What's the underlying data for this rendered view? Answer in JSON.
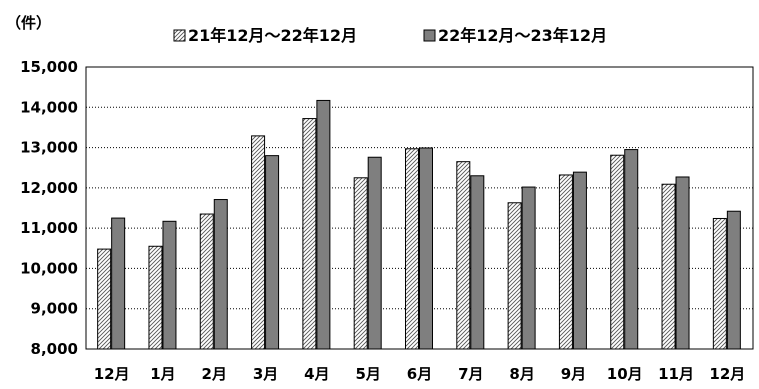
{
  "chart_data": {
    "type": "bar",
    "unit_label": "（件）",
    "categories": [
      "12月",
      "1月",
      "2月",
      "3月",
      "4月",
      "5月",
      "6月",
      "7月",
      "8月",
      "9月",
      "10月",
      "11月",
      "12月"
    ],
    "series": [
      {
        "name": "21年12月～22年12月",
        "values": [
          10480,
          10550,
          11350,
          13290,
          13720,
          12250,
          12970,
          12650,
          11630,
          12320,
          12810,
          12090,
          11240
        ],
        "color": "#ffffff",
        "pattern": "diagonal-hatch"
      },
      {
        "name": "22年12月～23年12月",
        "values": [
          11250,
          11170,
          11710,
          12800,
          14170,
          12760,
          12990,
          12300,
          12020,
          12390,
          12950,
          12270,
          11420
        ],
        "color": "#7f7f7f",
        "pattern": "solid"
      }
    ],
    "yticks": [
      "8,000",
      "9,000",
      "10,000",
      "11,000",
      "12,000",
      "13,000",
      "14,000",
      "15,000"
    ],
    "ylim": [
      8000,
      15000
    ],
    "grid": true,
    "legend": "top"
  }
}
